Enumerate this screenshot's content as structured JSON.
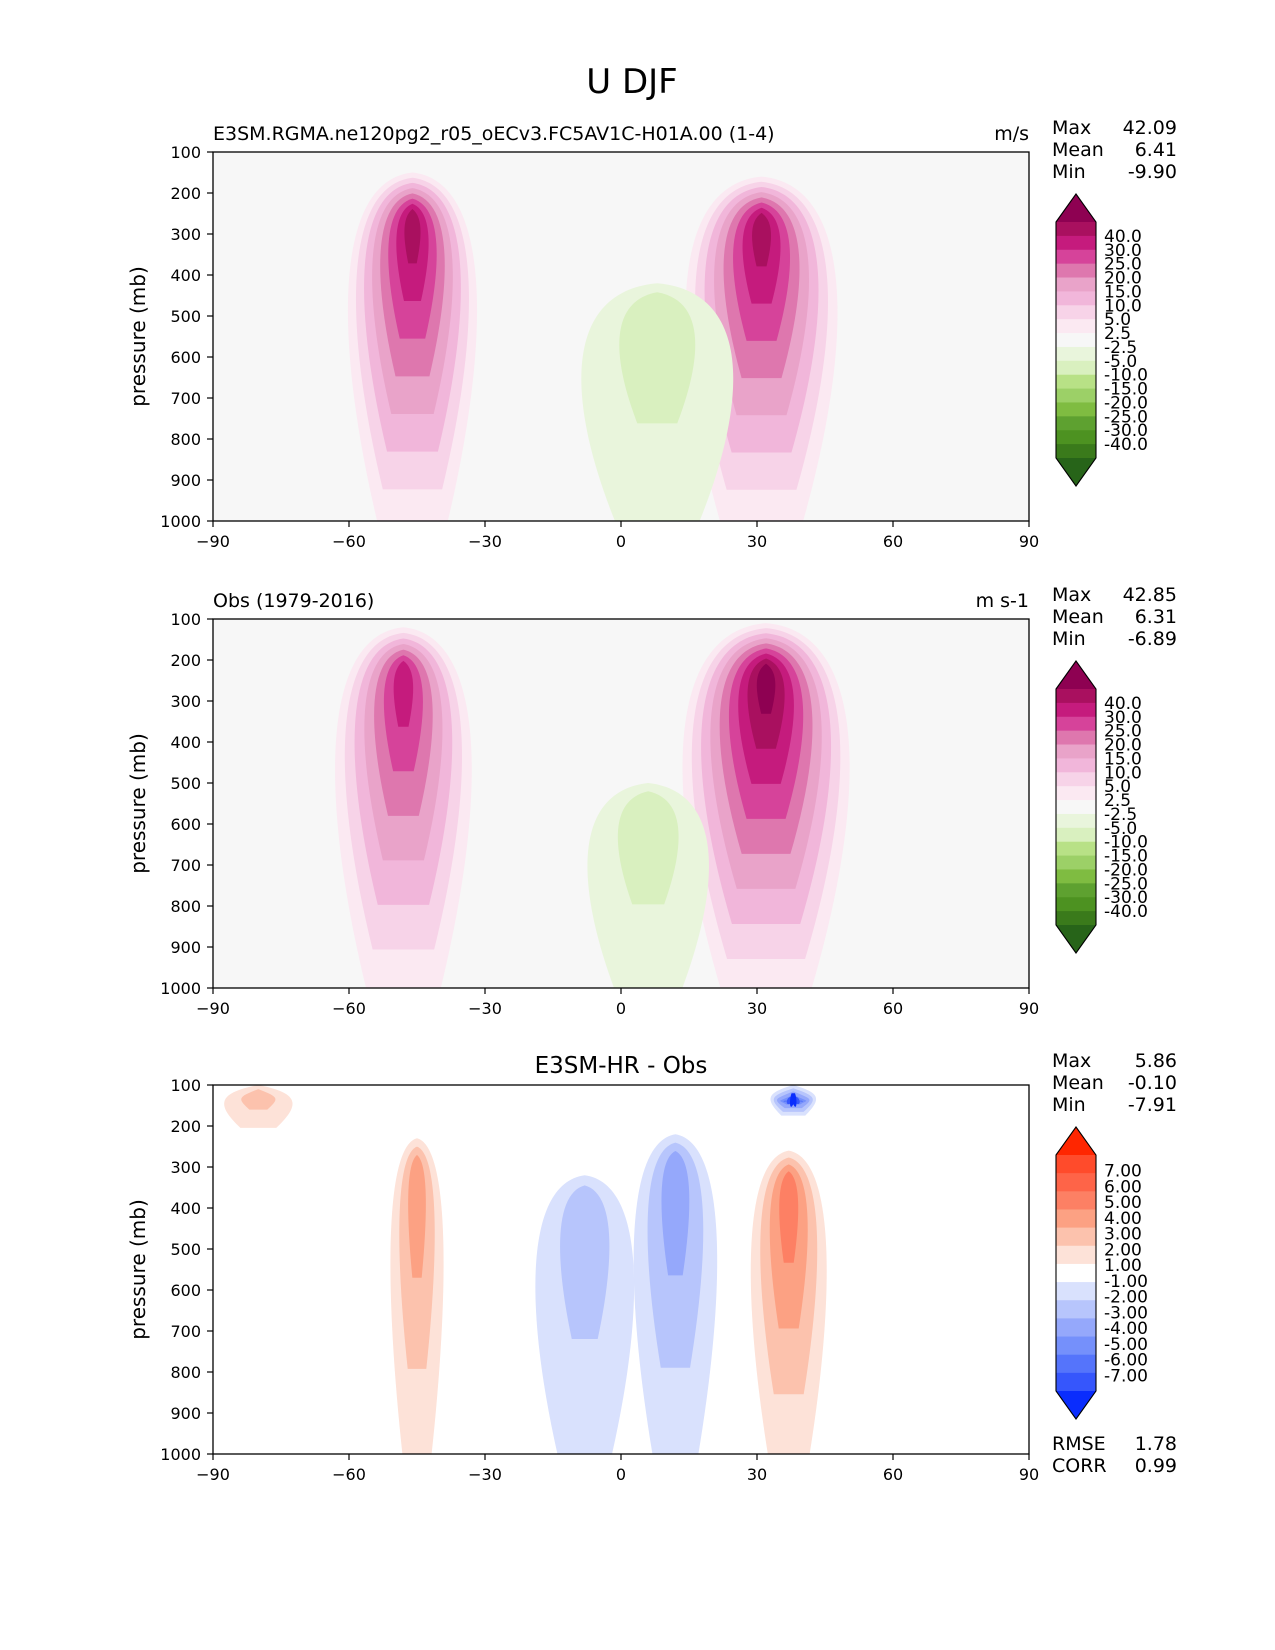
{
  "figure": {
    "title": "U DJF"
  },
  "chart_data": [
    {
      "type": "heatmap",
      "subplot": "test",
      "title_left": "E3SM.RGMA.ne120pg2_r05_oECv3.FC5AV1C-H01A.00 (1-4)",
      "title_center": "",
      "units": "m/s",
      "xlabel": "",
      "ylabel": "pressure (mb)",
      "xlim": [
        -90,
        90
      ],
      "ylim": [
        1000,
        100
      ],
      "xticks": [
        "−90",
        "−60",
        "−30",
        "0",
        "30",
        "60",
        "90"
      ],
      "xtick_values": [
        -90,
        -60,
        -30,
        0,
        30,
        60,
        90
      ],
      "yticks": [
        "100",
        "200",
        "300",
        "400",
        "500",
        "600",
        "700",
        "800",
        "900",
        "1000"
      ],
      "ytick_values": [
        100,
        200,
        300,
        400,
        500,
        600,
        700,
        800,
        900,
        1000
      ],
      "stats": [
        {
          "label": "Max",
          "value": "42.09"
        },
        {
          "label": "Mean",
          "value": "6.41"
        },
        {
          "label": "Min",
          "value": "-9.90"
        }
      ],
      "colorbar": {
        "levels": [
          "40.0",
          "30.0",
          "25.0",
          "20.0",
          "15.0",
          "10.0",
          "5.0",
          "2.5",
          "-2.5",
          "-5.0",
          "-10.0",
          "-15.0",
          "-20.0",
          "-25.0",
          "-30.0",
          "-40.0"
        ],
        "colors": [
          "#8e0152",
          "#a9105f",
          "#c51b7d",
          "#d6439a",
          "#de77ae",
          "#e9a3c9",
          "#f1b6da",
          "#f7d3e8",
          "#fbe9f2",
          "#f7f7f7",
          "#e9f5dc",
          "#d9f0bf",
          "#b8e186",
          "#9cd067",
          "#7fbc41",
          "#5ea130",
          "#4d9221",
          "#3a7a1b",
          "#276419"
        ]
      },
      "jets": [
        {
          "lat_center": -46,
          "p_top": 150,
          "p_bottom": 1000,
          "width_deg": 34,
          "max": 38
        },
        {
          "lat_center": 31,
          "p_top": 160,
          "p_bottom": 1000,
          "width_deg": 40,
          "max": 42.09
        }
      ],
      "easterlies": [
        {
          "lat_center": 8,
          "p_top": 420,
          "p_bottom": 1000,
          "width_deg": 40,
          "min": -9.9
        }
      ]
    },
    {
      "type": "heatmap",
      "subplot": "reference",
      "title_left": "Obs (1979-2016)",
      "title_center": "",
      "units": "m s-1",
      "xlabel": "",
      "ylabel": "pressure (mb)",
      "xlim": [
        -90,
        90
      ],
      "ylim": [
        1000,
        100
      ],
      "xticks": [
        "−90",
        "−60",
        "−30",
        "0",
        "30",
        "60",
        "90"
      ],
      "xtick_values": [
        -90,
        -60,
        -30,
        0,
        30,
        60,
        90
      ],
      "yticks": [
        "100",
        "200",
        "300",
        "400",
        "500",
        "600",
        "700",
        "800",
        "900",
        "1000"
      ],
      "ytick_values": [
        100,
        200,
        300,
        400,
        500,
        600,
        700,
        800,
        900,
        1000
      ],
      "stats": [
        {
          "label": "Max",
          "value": "42.85"
        },
        {
          "label": "Mean",
          "value": "6.31"
        },
        {
          "label": "Min",
          "value": "-6.89"
        }
      ],
      "colorbar": {
        "levels": [
          "40.0",
          "30.0",
          "25.0",
          "20.0",
          "15.0",
          "10.0",
          "5.0",
          "2.5",
          "-2.5",
          "-5.0",
          "-10.0",
          "-15.0",
          "-20.0",
          "-25.0",
          "-30.0",
          "-40.0"
        ],
        "colors": [
          "#8e0152",
          "#a9105f",
          "#c51b7d",
          "#d6439a",
          "#de77ae",
          "#e9a3c9",
          "#f1b6da",
          "#f7d3e8",
          "#fbe9f2",
          "#f7f7f7",
          "#e9f5dc",
          "#d9f0bf",
          "#b8e186",
          "#9cd067",
          "#7fbc41",
          "#5ea130",
          "#4d9221",
          "#3a7a1b",
          "#276419"
        ]
      },
      "jets": [
        {
          "lat_center": -48,
          "p_top": 120,
          "p_bottom": 1000,
          "width_deg": 36,
          "max": 36
        },
        {
          "lat_center": 32,
          "p_top": 110,
          "p_bottom": 1000,
          "width_deg": 44,
          "max": 42.85
        }
      ],
      "easterlies": [
        {
          "lat_center": 6,
          "p_top": 500,
          "p_bottom": 1000,
          "width_deg": 32,
          "min": -6.89
        }
      ]
    },
    {
      "type": "heatmap",
      "subplot": "difference",
      "title_left": "",
      "title_center": "E3SM-HR - Obs",
      "units": "",
      "xlabel": "",
      "ylabel": "pressure (mb)",
      "xlim": [
        -90,
        90
      ],
      "ylim": [
        1000,
        100
      ],
      "xticks": [
        "−90",
        "−60",
        "−30",
        "0",
        "30",
        "60",
        "90"
      ],
      "xtick_values": [
        -90,
        -60,
        -30,
        0,
        30,
        60,
        90
      ],
      "yticks": [
        "100",
        "200",
        "300",
        "400",
        "500",
        "600",
        "700",
        "800",
        "900",
        "1000"
      ],
      "ytick_values": [
        100,
        200,
        300,
        400,
        500,
        600,
        700,
        800,
        900,
        1000
      ],
      "stats": [
        {
          "label": "Max",
          "value": "5.86"
        },
        {
          "label": "Mean",
          "value": "-0.10"
        },
        {
          "label": "Min",
          "value": "-7.91"
        }
      ],
      "extra_stats": [
        {
          "label": "RMSE",
          "value": "1.78"
        },
        {
          "label": "CORR",
          "value": "0.99"
        }
      ],
      "colorbar": {
        "levels": [
          "7.00",
          "6.00",
          "5.00",
          "4.00",
          "3.00",
          "2.00",
          "1.00",
          "-1.00",
          "-2.00",
          "-3.00",
          "-4.00",
          "-5.00",
          "-6.00",
          "-7.00"
        ],
        "colors": [
          "#ff2600",
          "#ff4b2b",
          "#fe6448",
          "#fd8064",
          "#fca183",
          "#fcc2ad",
          "#fde2d8",
          "#ffffff",
          "#d9e1fd",
          "#b7c5fc",
          "#95a8fb",
          "#7590fb",
          "#5574fb",
          "#3656fc",
          "#0a2dfd"
        ]
      },
      "anomalies": [
        {
          "lat_center": -45,
          "p_top": 230,
          "p_bottom": 1000,
          "width_deg": 14,
          "value": 3
        },
        {
          "lat_center": 37,
          "p_top": 260,
          "p_bottom": 1000,
          "width_deg": 20,
          "value": 4
        },
        {
          "lat_center": 12,
          "p_top": 220,
          "p_bottom": 1000,
          "width_deg": 22,
          "value": -3
        },
        {
          "lat_center": -8,
          "p_top": 320,
          "p_bottom": 1000,
          "width_deg": 26,
          "value": -1.5
        },
        {
          "lat_center": 38,
          "p_top": 100,
          "p_bottom": 160,
          "width_deg": 12,
          "value": -7.91
        },
        {
          "lat_center": -80,
          "p_top": 100,
          "p_bottom": 190,
          "width_deg": 18,
          "value": 1.5
        }
      ]
    }
  ]
}
